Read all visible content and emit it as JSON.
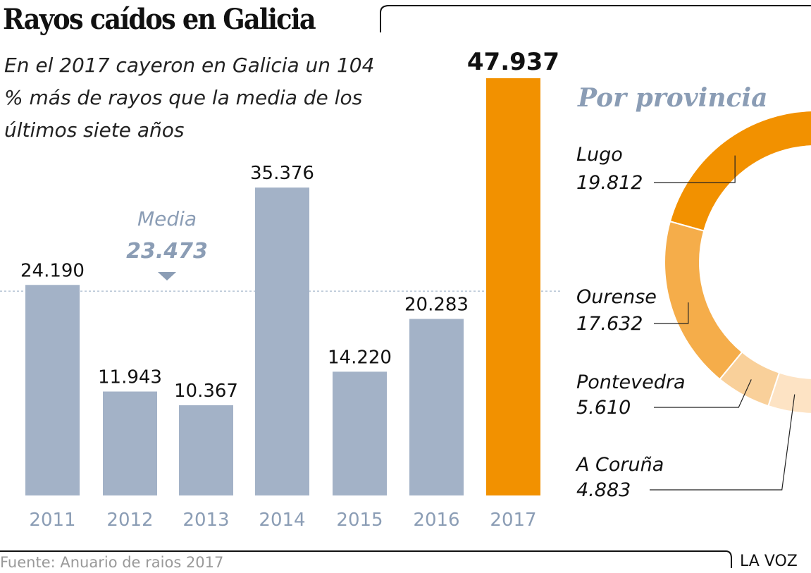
{
  "title": "Rayos caídos en Galicia",
  "subtitle": "En el 2017 cayeron en Galicia un 104 % más de rayos que la media de los últimos siete años",
  "source": "Fuente: Anuario de raios 2017",
  "brand": "LA VOZ",
  "colors": {
    "bar": "#a3b2c7",
    "highlight": "#f29100",
    "media": "#8b9db5"
  },
  "chart_data": [
    {
      "type": "bar",
      "title": "Rayos caídos en Galicia",
      "categories": [
        "2011",
        "2012",
        "2013",
        "2014",
        "2015",
        "2016",
        "2017"
      ],
      "values": [
        24190,
        11943,
        10367,
        35376,
        14220,
        20283,
        47937
      ],
      "labels": [
        "24.190",
        "11.943",
        "10.367",
        "35.376",
        "14.220",
        "20.283",
        "47.937"
      ],
      "highlight_index": 6,
      "reference": {
        "label": "Media",
        "value": 23473,
        "value_label": "23.473"
      },
      "ylim": [
        0,
        47937
      ]
    },
    {
      "type": "pie",
      "title": "Por provincia",
      "style": "half-donut",
      "categories": [
        "Lugo",
        "Ourense",
        "Pontevedra",
        "A Coruña"
      ],
      "values": [
        19812,
        17632,
        5610,
        4883
      ],
      "labels": [
        "19.812",
        "17.632",
        "5.610",
        "4.883"
      ],
      "colors": [
        "#f29100",
        "#f5ad4a",
        "#f9d09a",
        "#fde3c4"
      ]
    }
  ]
}
